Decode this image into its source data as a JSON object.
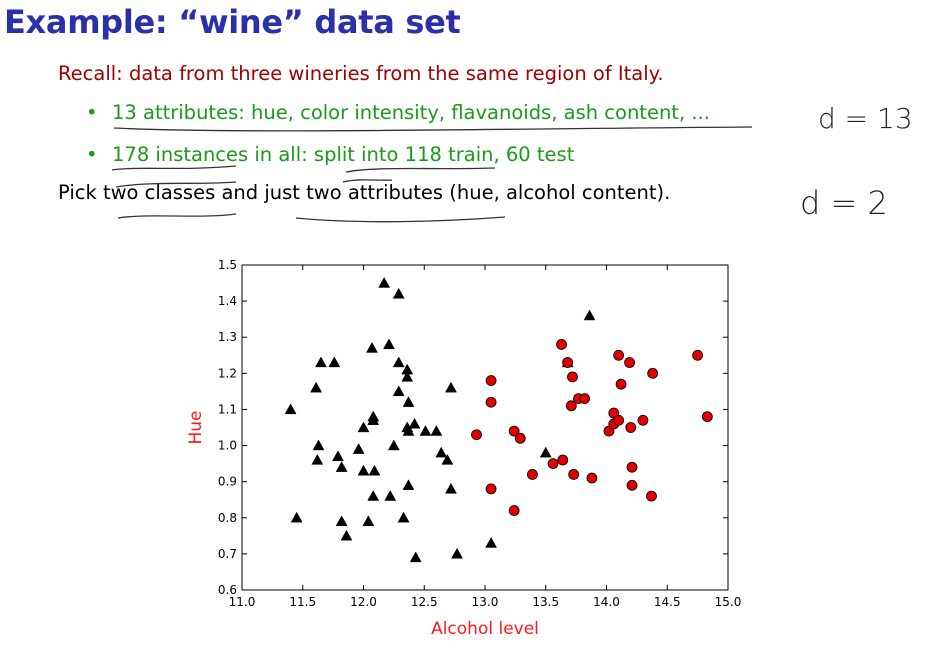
{
  "slide": {
    "title": "Example: “wine” data set",
    "recall": "Recall: data from three wineries from the same region of Italy.",
    "bullets": [
      "13 attributes: hue, color intensity, flavanoids, ash content, ...",
      "178 instances in all: split into 118 train, 60 test"
    ],
    "bullet_glyph": "•",
    "pick": "Pick two classes and just two attributes (hue, alcohol content).",
    "handwriting": [
      "d = 13",
      "d = 2"
    ]
  },
  "colors": {
    "title": "#2b2fa8",
    "recall": "#a00000",
    "bullets": "#1a9a1a",
    "class_1": "#000000",
    "class_2": "#e00000",
    "axis_label": "#ff1a1a"
  },
  "chart_data": {
    "type": "scatter",
    "xlabel": "Alcohol level",
    "ylabel": "Hue",
    "xlim": [
      11.0,
      15.0
    ],
    "ylim": [
      0.6,
      1.5
    ],
    "xticks": [
      "11.0",
      "11.5",
      "12.0",
      "12.5",
      "13.0",
      "13.5",
      "14.0",
      "14.5",
      "15.0"
    ],
    "yticks": [
      "0.6",
      "0.7",
      "0.8",
      "0.9",
      "1.0",
      "1.1",
      "1.2",
      "1.3",
      "1.4",
      "1.5"
    ],
    "grid": false,
    "series": [
      {
        "marker": "triangle",
        "color": "#000000",
        "points": [
          [
            11.4,
            1.1
          ],
          [
            11.45,
            0.8
          ],
          [
            11.61,
            1.16
          ],
          [
            11.62,
            0.96
          ],
          [
            11.63,
            1.0
          ],
          [
            11.65,
            1.23
          ],
          [
            11.76,
            1.23
          ],
          [
            11.79,
            0.97
          ],
          [
            11.82,
            0.94
          ],
          [
            11.82,
            0.79
          ],
          [
            11.86,
            0.75
          ],
          [
            11.96,
            0.99
          ],
          [
            12.0,
            1.05
          ],
          [
            12.0,
            0.93
          ],
          [
            12.04,
            0.79
          ],
          [
            12.07,
            1.27
          ],
          [
            12.08,
            1.08
          ],
          [
            12.08,
            1.07
          ],
          [
            12.08,
            0.86
          ],
          [
            12.09,
            0.93
          ],
          [
            12.17,
            1.45
          ],
          [
            12.21,
            1.28
          ],
          [
            12.22,
            0.86
          ],
          [
            12.25,
            1.0
          ],
          [
            12.29,
            1.23
          ],
          [
            12.29,
            1.42
          ],
          [
            12.29,
            1.15
          ],
          [
            12.33,
            0.8
          ],
          [
            12.36,
            1.21
          ],
          [
            12.36,
            1.19
          ],
          [
            12.36,
            1.05
          ],
          [
            12.37,
            1.12
          ],
          [
            12.37,
            1.04
          ],
          [
            12.37,
            0.89
          ],
          [
            12.42,
            1.06
          ],
          [
            12.43,
            0.69
          ],
          [
            12.51,
            1.04
          ],
          [
            12.6,
            1.04
          ],
          [
            12.64,
            0.98
          ],
          [
            12.69,
            0.96
          ],
          [
            12.72,
            1.16
          ],
          [
            12.72,
            0.88
          ],
          [
            12.77,
            0.7
          ],
          [
            13.05,
            0.73
          ],
          [
            13.5,
            0.98
          ],
          [
            13.68,
            1.23
          ],
          [
            13.86,
            1.36
          ]
        ]
      },
      {
        "marker": "circle",
        "color": "#e00000",
        "points": [
          [
            12.93,
            1.03
          ],
          [
            13.05,
            1.18
          ],
          [
            13.05,
            1.12
          ],
          [
            13.05,
            0.88
          ],
          [
            13.24,
            1.04
          ],
          [
            13.24,
            0.82
          ],
          [
            13.29,
            1.02
          ],
          [
            13.39,
            0.92
          ],
          [
            13.56,
            0.95
          ],
          [
            13.63,
            1.28
          ],
          [
            13.64,
            0.96
          ],
          [
            13.68,
            1.23
          ],
          [
            13.71,
            1.11
          ],
          [
            13.72,
            1.19
          ],
          [
            13.73,
            0.92
          ],
          [
            13.77,
            1.13
          ],
          [
            13.82,
            1.13
          ],
          [
            13.88,
            0.91
          ],
          [
            14.02,
            1.04
          ],
          [
            14.06,
            1.09
          ],
          [
            14.06,
            1.06
          ],
          [
            14.1,
            1.25
          ],
          [
            14.1,
            1.07
          ],
          [
            14.12,
            1.17
          ],
          [
            14.19,
            1.23
          ],
          [
            14.2,
            1.05
          ],
          [
            14.21,
            0.94
          ],
          [
            14.21,
            0.89
          ],
          [
            14.3,
            1.07
          ],
          [
            14.37,
            0.86
          ],
          [
            14.38,
            1.2
          ],
          [
            14.75,
            1.25
          ],
          [
            14.83,
            1.08
          ]
        ]
      }
    ]
  }
}
